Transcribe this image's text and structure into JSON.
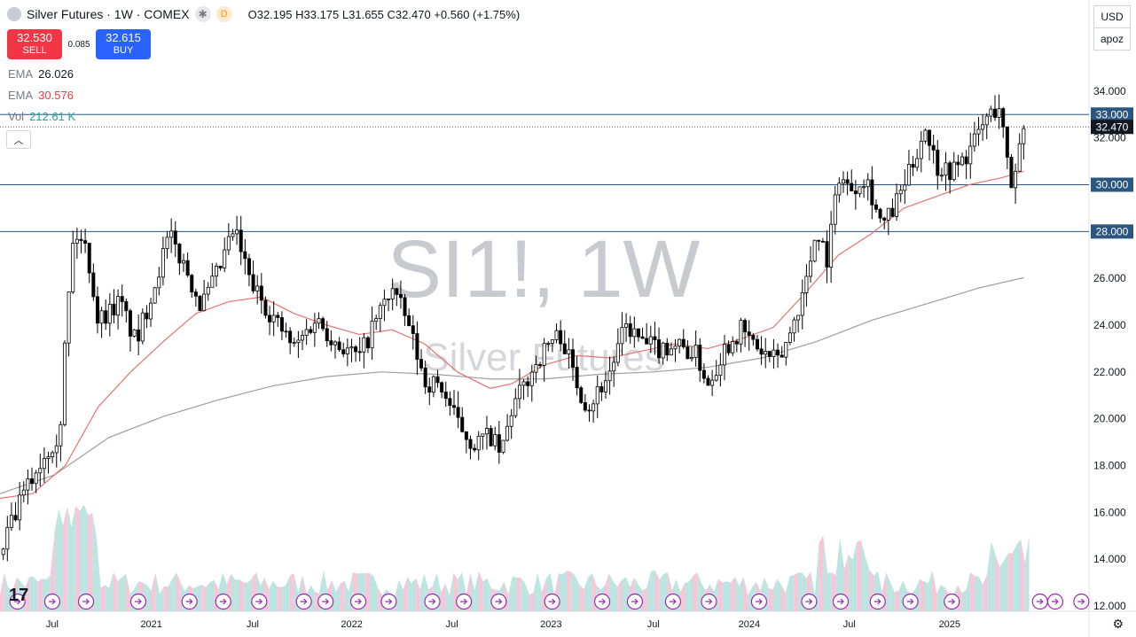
{
  "header": {
    "title": "Silver Futures · 1W · COMEX",
    "star_icon": "star-icon",
    "data_source_badge": "D",
    "ohlc": {
      "o_label": "O",
      "o": "32.195",
      "h_label": "H",
      "h": "33.175",
      "l_label": "L",
      "l": "31.655",
      "c_label": "C",
      "c": "32.470",
      "change": "+0.560 (+1.75%)"
    }
  },
  "trade": {
    "sell_price": "32.530",
    "sell_label": "SELL",
    "spread": "0.085",
    "buy_price": "32.615",
    "buy_label": "BUY"
  },
  "indicators": [
    {
      "name": "EMA",
      "value": "26.026",
      "color": "#787b86"
    },
    {
      "name": "EMA",
      "value": "30.576",
      "color": "#f23645"
    },
    {
      "name": "Vol",
      "value": "212.61 K",
      "color": "#26a69a"
    }
  ],
  "toolbar": {
    "currency": "USD",
    "scale_mode": "apoz",
    "collapse_icon": "chevron-up-icon",
    "settings_icon": "gear-icon"
  },
  "watermark": {
    "line1": "SI1!, 1W",
    "line2": "Silver Futures"
  },
  "colors": {
    "up": "#ffffff",
    "down": "#000000",
    "ema_fast": "#e57373",
    "ema_slow": "#9e9e9e",
    "hline": "#2a5680",
    "vol_up": "#b2dfdb",
    "vol_down": "#f8bbd0"
  },
  "chart_data": {
    "type": "candlestick",
    "interval": "1W",
    "ylim": [
      12,
      36
    ],
    "y_ticks": [
      "12.000",
      "14.000",
      "16.000",
      "18.000",
      "20.000",
      "22.000",
      "24.000",
      "26.000",
      "28.000",
      "30.000",
      "32.000",
      "34.000"
    ],
    "x_ticks": [
      {
        "label": "Jul",
        "t": 0.048
      },
      {
        "label": "2021",
        "t": 0.139
      },
      {
        "label": "Jul",
        "t": 0.232
      },
      {
        "label": "2022",
        "t": 0.323
      },
      {
        "label": "Jul",
        "t": 0.415
      },
      {
        "label": "2023",
        "t": 0.506
      },
      {
        "label": "Jul",
        "t": 0.6
      },
      {
        "label": "2024",
        "t": 0.688
      },
      {
        "label": "Jul",
        "t": 0.78
      },
      {
        "label": "2025",
        "t": 0.872
      }
    ],
    "horizontal_levels": [
      "28.000",
      "30.000",
      "33.000"
    ],
    "last_price": "32.470",
    "price_path": [
      [
        0.0,
        14.2
      ],
      [
        0.02,
        16.6
      ],
      [
        0.04,
        18.4
      ],
      [
        0.055,
        19.5
      ],
      [
        0.06,
        23.5
      ],
      [
        0.068,
        28.0
      ],
      [
        0.08,
        27.2
      ],
      [
        0.09,
        24.2
      ],
      [
        0.11,
        25.0
      ],
      [
        0.125,
        23.2
      ],
      [
        0.14,
        25.5
      ],
      [
        0.155,
        27.8
      ],
      [
        0.17,
        26.5
      ],
      [
        0.185,
        24.8
      ],
      [
        0.2,
        26.2
      ],
      [
        0.215,
        28.1
      ],
      [
        0.23,
        25.8
      ],
      [
        0.25,
        24.4
      ],
      [
        0.27,
        23.0
      ],
      [
        0.29,
        24.3
      ],
      [
        0.31,
        23.2
      ],
      [
        0.33,
        22.6
      ],
      [
        0.345,
        24.2
      ],
      [
        0.36,
        25.6
      ],
      [
        0.375,
        24.0
      ],
      [
        0.39,
        21.6
      ],
      [
        0.405,
        21.4
      ],
      [
        0.42,
        19.8
      ],
      [
        0.435,
        18.9
      ],
      [
        0.45,
        19.3
      ],
      [
        0.46,
        18.4
      ],
      [
        0.47,
        20.4
      ],
      [
        0.49,
        22.2
      ],
      [
        0.505,
        23.3
      ],
      [
        0.515,
        23.6
      ],
      [
        0.53,
        21.5
      ],
      [
        0.54,
        20.5
      ],
      [
        0.56,
        22.0
      ],
      [
        0.575,
        24.0
      ],
      [
        0.59,
        23.2
      ],
      [
        0.605,
        23.0
      ],
      [
        0.62,
        23.2
      ],
      [
        0.64,
        22.7
      ],
      [
        0.65,
        21.5
      ],
      [
        0.665,
        23.0
      ],
      [
        0.68,
        23.8
      ],
      [
        0.7,
        22.8
      ],
      [
        0.715,
        22.4
      ],
      [
        0.725,
        23.6
      ],
      [
        0.74,
        25.8
      ],
      [
        0.75,
        28.2
      ],
      [
        0.76,
        26.8
      ],
      [
        0.77,
        30.5
      ],
      [
        0.78,
        29.8
      ],
      [
        0.795,
        30.4
      ],
      [
        0.81,
        28.2
      ],
      [
        0.82,
        28.9
      ],
      [
        0.835,
        30.5
      ],
      [
        0.85,
        32.5
      ],
      [
        0.86,
        30.8
      ],
      [
        0.875,
        30.6
      ],
      [
        0.89,
        31.4
      ],
      [
        0.905,
        32.8
      ],
      [
        0.918,
        33.4
      ],
      [
        0.928,
        29.8
      ],
      [
        0.935,
        31.4
      ],
      [
        0.94,
        32.47
      ]
    ],
    "ema_fast_path": [
      [
        0.0,
        16.6
      ],
      [
        0.03,
        16.8
      ],
      [
        0.06,
        18.0
      ],
      [
        0.09,
        20.5
      ],
      [
        0.12,
        22.0
      ],
      [
        0.15,
        23.3
      ],
      [
        0.18,
        24.5
      ],
      [
        0.21,
        25.0
      ],
      [
        0.24,
        25.2
      ],
      [
        0.27,
        24.5
      ],
      [
        0.3,
        24.0
      ],
      [
        0.33,
        23.6
      ],
      [
        0.36,
        23.8
      ],
      [
        0.39,
        23.2
      ],
      [
        0.42,
        22.0
      ],
      [
        0.45,
        21.3
      ],
      [
        0.47,
        21.5
      ],
      [
        0.5,
        22.3
      ],
      [
        0.53,
        22.7
      ],
      [
        0.56,
        22.6
      ],
      [
        0.59,
        22.9
      ],
      [
        0.62,
        23.2
      ],
      [
        0.65,
        23.0
      ],
      [
        0.68,
        23.4
      ],
      [
        0.71,
        23.9
      ],
      [
        0.74,
        25.4
      ],
      [
        0.77,
        27.0
      ],
      [
        0.8,
        27.9
      ],
      [
        0.83,
        29.0
      ],
      [
        0.86,
        29.5
      ],
      [
        0.89,
        30.0
      ],
      [
        0.92,
        30.3
      ],
      [
        0.94,
        30.58
      ]
    ],
    "ema_slow_path": [
      [
        0.0,
        16.8
      ],
      [
        0.05,
        17.6
      ],
      [
        0.1,
        19.2
      ],
      [
        0.15,
        20.1
      ],
      [
        0.2,
        20.8
      ],
      [
        0.25,
        21.4
      ],
      [
        0.3,
        21.8
      ],
      [
        0.35,
        22.0
      ],
      [
        0.4,
        21.9
      ],
      [
        0.45,
        21.7
      ],
      [
        0.5,
        21.7
      ],
      [
        0.55,
        21.9
      ],
      [
        0.6,
        22.0
      ],
      [
        0.65,
        22.2
      ],
      [
        0.7,
        22.6
      ],
      [
        0.75,
        23.3
      ],
      [
        0.8,
        24.2
      ],
      [
        0.85,
        24.9
      ],
      [
        0.9,
        25.6
      ],
      [
        0.94,
        26.03
      ]
    ],
    "volume_series": {
      "name": "Vol",
      "last": "212.61 K"
    }
  }
}
